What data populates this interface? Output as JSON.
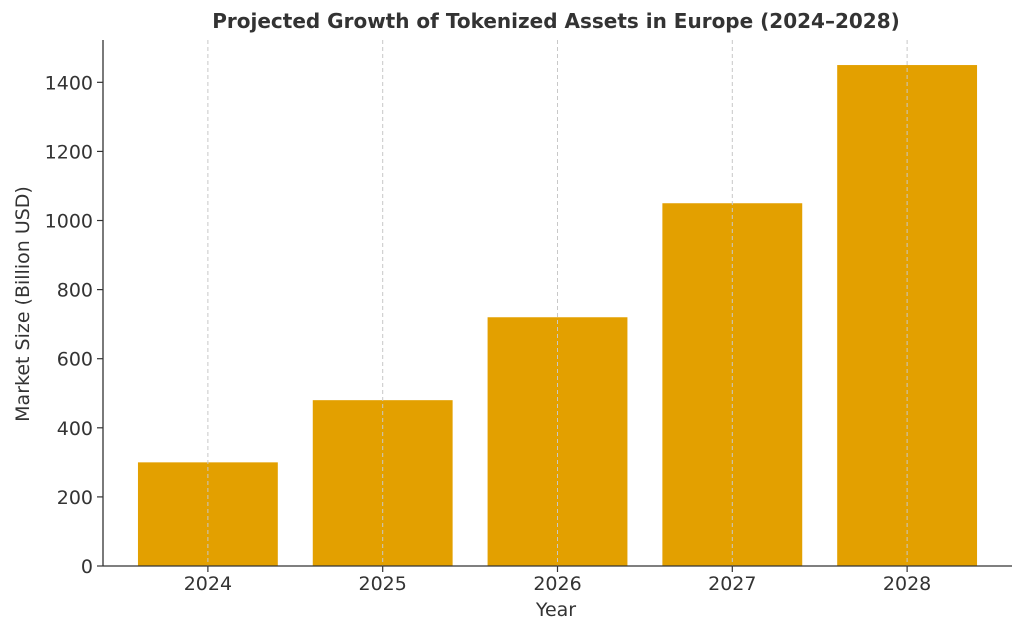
{
  "chart_data": {
    "type": "bar",
    "title": "Projected Growth of Tokenized Assets in Europe (2024–2028)",
    "xlabel": "Year",
    "ylabel": "Market Size (Billion USD)",
    "categories": [
      "2024",
      "2025",
      "2026",
      "2027",
      "2028"
    ],
    "values": [
      300,
      480,
      720,
      1050,
      1450
    ],
    "ylim": [
      0,
      1522.5
    ],
    "yticks": [
      0,
      200,
      400,
      600,
      800,
      1000,
      1200,
      1400
    ],
    "ytick_labels": [
      "0",
      "200",
      "400",
      "600",
      "800",
      "1000",
      "1200",
      "1400"
    ],
    "grid": "vertical dashed",
    "bar_color": "#E3A000",
    "grid_color": "#C8C8C8",
    "axis_color": "#333333",
    "legend": "none"
  }
}
